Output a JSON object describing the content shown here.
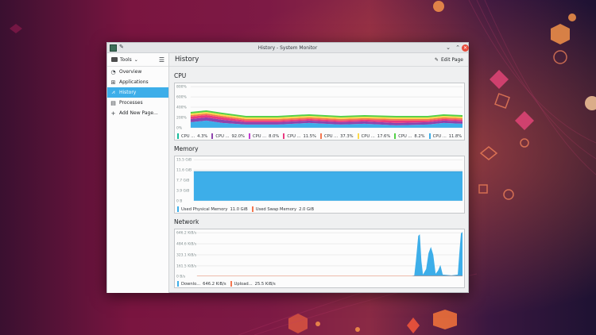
{
  "window": {
    "title": "History - System Monitor"
  },
  "sidebar": {
    "tools_label": "Tools",
    "items": [
      {
        "label": "Overview",
        "icon": "gauge-icon"
      },
      {
        "label": "Applications",
        "icon": "grid-icon"
      },
      {
        "label": "History",
        "icon": "chart-icon"
      },
      {
        "label": "Processes",
        "icon": "list-icon"
      },
      {
        "label": "Add New Page...",
        "icon": "plus-icon"
      }
    ],
    "active_index": 2
  },
  "header": {
    "title": "History",
    "edit_label": "Edit Page"
  },
  "cpu": {
    "title": "CPU",
    "y_ticks": [
      "800%",
      "600%",
      "400%",
      "200%",
      "0%"
    ],
    "legend": [
      {
        "label": "CPU ...",
        "value": "4.3%",
        "color": "#1abc9c"
      },
      {
        "label": "CPU ...",
        "value": "92.0%",
        "color": "#8e44ad"
      },
      {
        "label": "CPU ...",
        "value": "8.0%",
        "color": "#c03bd0"
      },
      {
        "label": "CPU ...",
        "value": "11.5%",
        "color": "#e93a80"
      },
      {
        "label": "CPU ...",
        "value": "37.3%",
        "color": "#f47750"
      },
      {
        "label": "CPU ...",
        "value": "17.6%",
        "color": "#fdd94a"
      },
      {
        "label": "CPU ...",
        "value": "8.2%",
        "color": "#52d046"
      },
      {
        "label": "CPU ...",
        "value": "11.8%",
        "color": "#3daee9"
      }
    ]
  },
  "memory": {
    "title": "Memory",
    "y_ticks": [
      "15.5 GiB",
      "11.6 GiB",
      "7.7 GiB",
      "3.9 GiB",
      "0 B"
    ],
    "legend": [
      {
        "label": "Used Physical Memory",
        "value": "11.0 GiB",
        "color": "#3daee9"
      },
      {
        "label": "Used Swap Memory",
        "value": "2.0 GiB",
        "color": "#f47750"
      }
    ]
  },
  "network": {
    "title": "Network",
    "y_ticks": [
      "646.2 KiB/s",
      "484.6 KiB/s",
      "323.1 KiB/s",
      "161.5 KiB/s",
      "0 B/s"
    ],
    "legend": [
      {
        "label": "Downlo...",
        "value": "646.2 KiB/s",
        "color": "#3daee9"
      },
      {
        "label": "Upload...",
        "value": "25.5 KiB/s",
        "color": "#f47750"
      }
    ]
  }
}
